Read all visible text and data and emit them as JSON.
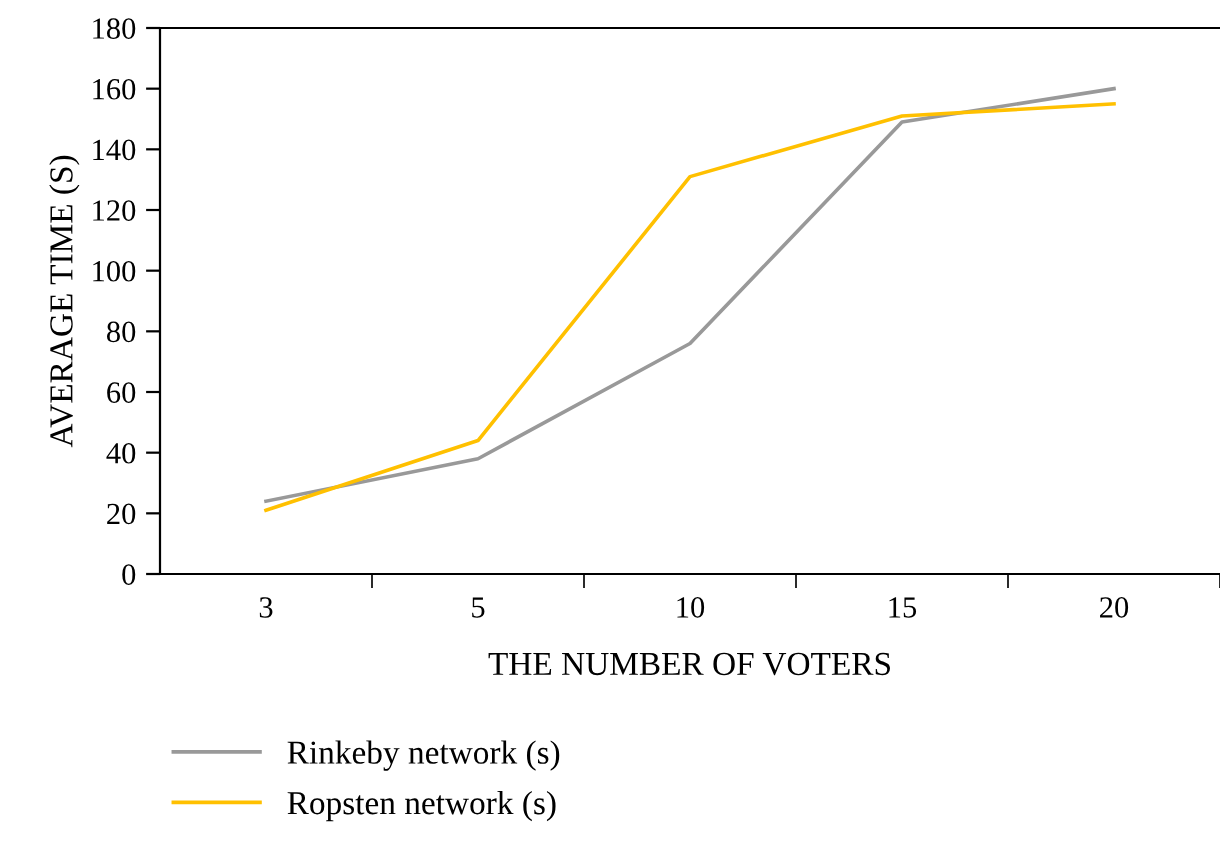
{
  "chart_data": {
    "type": "line",
    "xlabel": "THE NUMBER OF VOTERS",
    "ylabel": "AVERAGE TIME (S)",
    "categories": [
      "3",
      "5",
      "10",
      "15",
      "20"
    ],
    "series": [
      {
        "name": "Rinkeby network (s)",
        "color": "#999999",
        "values": [
          24,
          38,
          76,
          149,
          160
        ]
      },
      {
        "name": "Ropsten network (s)",
        "color": "#ffc000",
        "values": [
          21,
          44,
          131,
          151,
          155
        ]
      }
    ],
    "ylim": [
      0,
      180
    ],
    "yticks": [
      0,
      20,
      40,
      60,
      80,
      100,
      120,
      140,
      160,
      180
    ],
    "grid": false,
    "legend": "bottom left",
    "marker": "none",
    "line_style": "solid"
  }
}
